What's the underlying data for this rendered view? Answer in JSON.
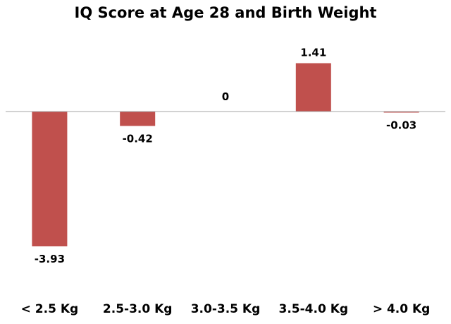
{
  "chart_data": {
    "type": "bar",
    "title": "IQ Score at Age 28 and Birth Weight",
    "categories": [
      "< 2.5 Kg",
      "2.5-3.0 Kg",
      "3.0-3.5 Kg",
      "3.5-4.0 Kg",
      "> 4.0 Kg"
    ],
    "values": [
      -3.93,
      -0.42,
      0,
      1.41,
      -0.03
    ],
    "data_labels": [
      "-3.93",
      "-0.42",
      "0",
      "1.41",
      "-0.03"
    ],
    "xlabel": "",
    "ylabel": "",
    "ylim": [
      -4.5,
      3.0
    ],
    "grid": false,
    "legend": "none",
    "colors": {
      "bar": "#c0504d",
      "axis": "#a6a6a6",
      "text": "#000000"
    }
  }
}
